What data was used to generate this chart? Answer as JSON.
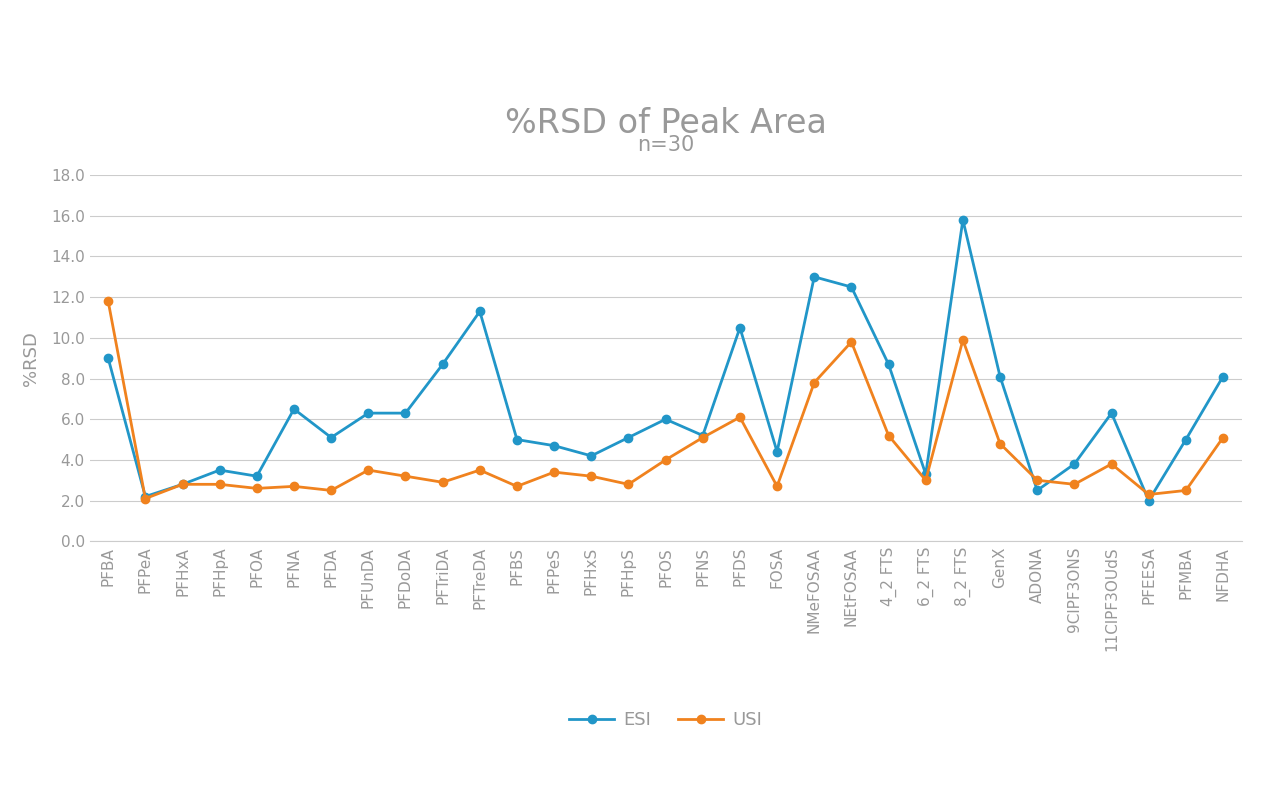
{
  "title": "%RSD of Peak Area",
  "subtitle": "n=30",
  "ylabel": "%RSD",
  "categories": [
    "PFBA",
    "PFPeA",
    "PFHxA",
    "PFHpA",
    "PFOA",
    "PFNA",
    "PFDA",
    "PFUnDA",
    "PFDoDA",
    "PFTriDA",
    "PFTreDA",
    "PFBS",
    "PFPeS",
    "PFHxS",
    "PFHpS",
    "PFOS",
    "PFNS",
    "PFDS",
    "FOSA",
    "NMeFOSAA",
    "NEtFOSAA",
    "4_2 FTS",
    "6_2 FTS",
    "8_2 FTS",
    "GenX",
    "ADONA",
    "9ClPF3ONS",
    "11ClPF3OUdS",
    "PFEESA",
    "PFMBA",
    "NFDHA"
  ],
  "esi": [
    9.0,
    2.2,
    2.8,
    3.5,
    3.2,
    6.5,
    5.1,
    6.3,
    6.3,
    8.7,
    11.3,
    5.0,
    4.7,
    4.2,
    5.1,
    6.0,
    5.2,
    10.5,
    4.4,
    13.0,
    12.5,
    8.7,
    3.3,
    15.8,
    8.1,
    2.5,
    3.8,
    6.3,
    2.0,
    5.0,
    8.1
  ],
  "usi": [
    11.8,
    2.1,
    2.8,
    2.8,
    2.6,
    2.7,
    2.5,
    3.5,
    3.2,
    2.9,
    3.5,
    2.7,
    3.4,
    3.2,
    2.8,
    4.0,
    5.1,
    6.1,
    2.7,
    7.8,
    9.8,
    5.2,
    3.0,
    9.9,
    4.8,
    3.0,
    2.8,
    3.8,
    2.3,
    2.5,
    5.1
  ],
  "esi_color": "#2196c8",
  "usi_color": "#f0821e",
  "ylim": [
    0.0,
    18.0
  ],
  "yticks": [
    0.0,
    2.0,
    4.0,
    6.0,
    8.0,
    10.0,
    12.0,
    14.0,
    16.0,
    18.0
  ],
  "title_fontsize": 24,
  "subtitle_fontsize": 15,
  "axis_label_fontsize": 13,
  "tick_fontsize": 11,
  "legend_fontsize": 13,
  "background_color": "#ffffff",
  "grid_color": "#cccccc",
  "text_color": "#999999"
}
